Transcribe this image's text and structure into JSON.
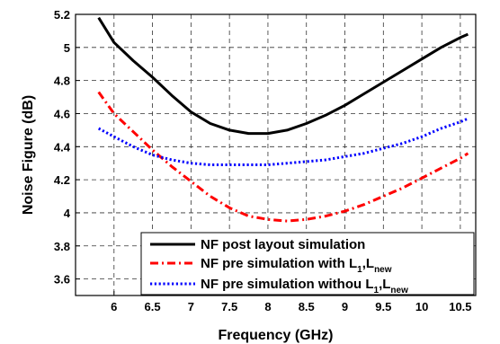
{
  "chart_data": {
    "type": "line",
    "xlabel": "Frequency (GHz)",
    "ylabel": "Noise Figure (dB)",
    "xlim": [
      5.5,
      10.7
    ],
    "ylim": [
      3.5,
      5.2
    ],
    "xticks": [
      "6",
      "6.5",
      "7",
      "7.5",
      "8",
      "8.5",
      "9",
      "9.5",
      "10",
      "10.5"
    ],
    "yticks": [
      "3.6",
      "3.8",
      "4",
      "4.2",
      "4.4",
      "4.6",
      "4.8",
      "5",
      "5.2"
    ],
    "grid": true,
    "legend_position": "bottom-right",
    "series": [
      {
        "name": "NF post layout simulation",
        "legend_main": "NF post layout simulation",
        "legend_sub1": "",
        "legend_mid": "",
        "legend_sub2": "",
        "color": "#000000",
        "style": "solid",
        "x": [
          5.8,
          6.0,
          6.25,
          6.5,
          6.75,
          7.0,
          7.25,
          7.5,
          7.75,
          8.0,
          8.25,
          8.5,
          8.75,
          9.0,
          9.25,
          9.5,
          9.75,
          10.0,
          10.25,
          10.5,
          10.6
        ],
        "y": [
          5.18,
          5.03,
          4.92,
          4.82,
          4.71,
          4.61,
          4.54,
          4.5,
          4.48,
          4.48,
          4.5,
          4.54,
          4.59,
          4.65,
          4.72,
          4.79,
          4.86,
          4.93,
          5.0,
          5.06,
          5.08
        ]
      },
      {
        "name": "NF pre simulation with L1,Lnew",
        "legend_main": "NF pre simulation with L",
        "legend_sub1": "1",
        "legend_mid": ",L",
        "legend_sub2": "new",
        "color": "#ff0000",
        "style": "dashdot",
        "x": [
          5.8,
          6.0,
          6.25,
          6.5,
          6.75,
          7.0,
          7.25,
          7.5,
          7.75,
          8.0,
          8.25,
          8.5,
          8.75,
          9.0,
          9.25,
          9.5,
          9.75,
          10.0,
          10.25,
          10.5,
          10.6
        ],
        "y": [
          4.73,
          4.6,
          4.49,
          4.38,
          4.28,
          4.19,
          4.1,
          4.03,
          3.98,
          3.96,
          3.95,
          3.96,
          3.98,
          4.01,
          4.05,
          4.1,
          4.15,
          4.21,
          4.27,
          4.33,
          4.36
        ]
      },
      {
        "name": "NF pre simulation withou L1,Lnew",
        "legend_main": "NF pre simulation withou L",
        "legend_sub1": "1",
        "legend_mid": ",L",
        "legend_sub2": "new",
        "color": "#0000ff",
        "style": "dotted",
        "x": [
          5.8,
          6.0,
          6.25,
          6.5,
          6.75,
          7.0,
          7.25,
          7.5,
          7.75,
          8.0,
          8.25,
          8.5,
          8.75,
          9.0,
          9.25,
          9.5,
          9.75,
          10.0,
          10.25,
          10.5,
          10.6
        ],
        "y": [
          4.51,
          4.46,
          4.4,
          4.35,
          4.32,
          4.3,
          4.29,
          4.29,
          4.29,
          4.29,
          4.3,
          4.31,
          4.32,
          4.34,
          4.36,
          4.39,
          4.42,
          4.46,
          4.51,
          4.55,
          4.57
        ]
      }
    ]
  }
}
